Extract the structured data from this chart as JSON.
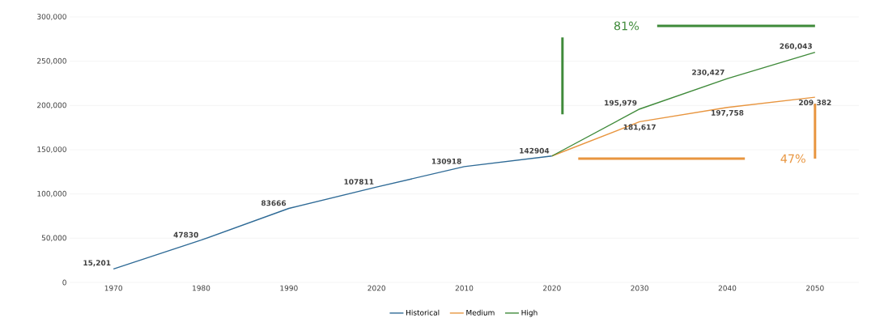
{
  "chart_data": {
    "type": "line",
    "categories": [
      "1970",
      "1980",
      "1990",
      "2020",
      "2010",
      "2020",
      "2030",
      "2040",
      "2050"
    ],
    "series": [
      {
        "name": "Historical",
        "color": "#2e6a96",
        "values": [
          15201,
          47830,
          83666,
          107811,
          130918,
          142904,
          null,
          null,
          null
        ],
        "value_labels": [
          "15,201",
          "47830",
          "83666",
          "107811",
          "130918",
          "142904",
          null,
          null,
          null
        ]
      },
      {
        "name": "Medium",
        "color": "#e8953f",
        "values": [
          null,
          null,
          null,
          null,
          null,
          142904,
          181617,
          197758,
          209382
        ],
        "value_labels": [
          null,
          null,
          null,
          null,
          null,
          null,
          "181,617",
          "197,758",
          "209,382"
        ]
      },
      {
        "name": "High",
        "color": "#3f8a3a",
        "values": [
          null,
          null,
          null,
          null,
          null,
          142904,
          195979,
          230427,
          260043
        ],
        "value_labels": [
          null,
          null,
          null,
          null,
          null,
          null,
          "195,979",
          "230,427",
          "260,043"
        ]
      }
    ],
    "ylim": [
      0,
      300000
    ],
    "yticks": [
      {
        "value": 0,
        "label": "0"
      },
      {
        "value": 50000,
        "label": "50,000"
      },
      {
        "value": 100000,
        "label": "100,000"
      },
      {
        "value": 150000,
        "label": "150,000"
      },
      {
        "value": 200000,
        "label": "200,000"
      },
      {
        "value": 250000,
        "label": "250,000"
      },
      {
        "value": 300000,
        "label": "300,000"
      }
    ],
    "annotations": [
      "81%",
      "47%"
    ],
    "grid": "y",
    "legend": "bottom",
    "marker": "none",
    "line_style": "solid"
  }
}
